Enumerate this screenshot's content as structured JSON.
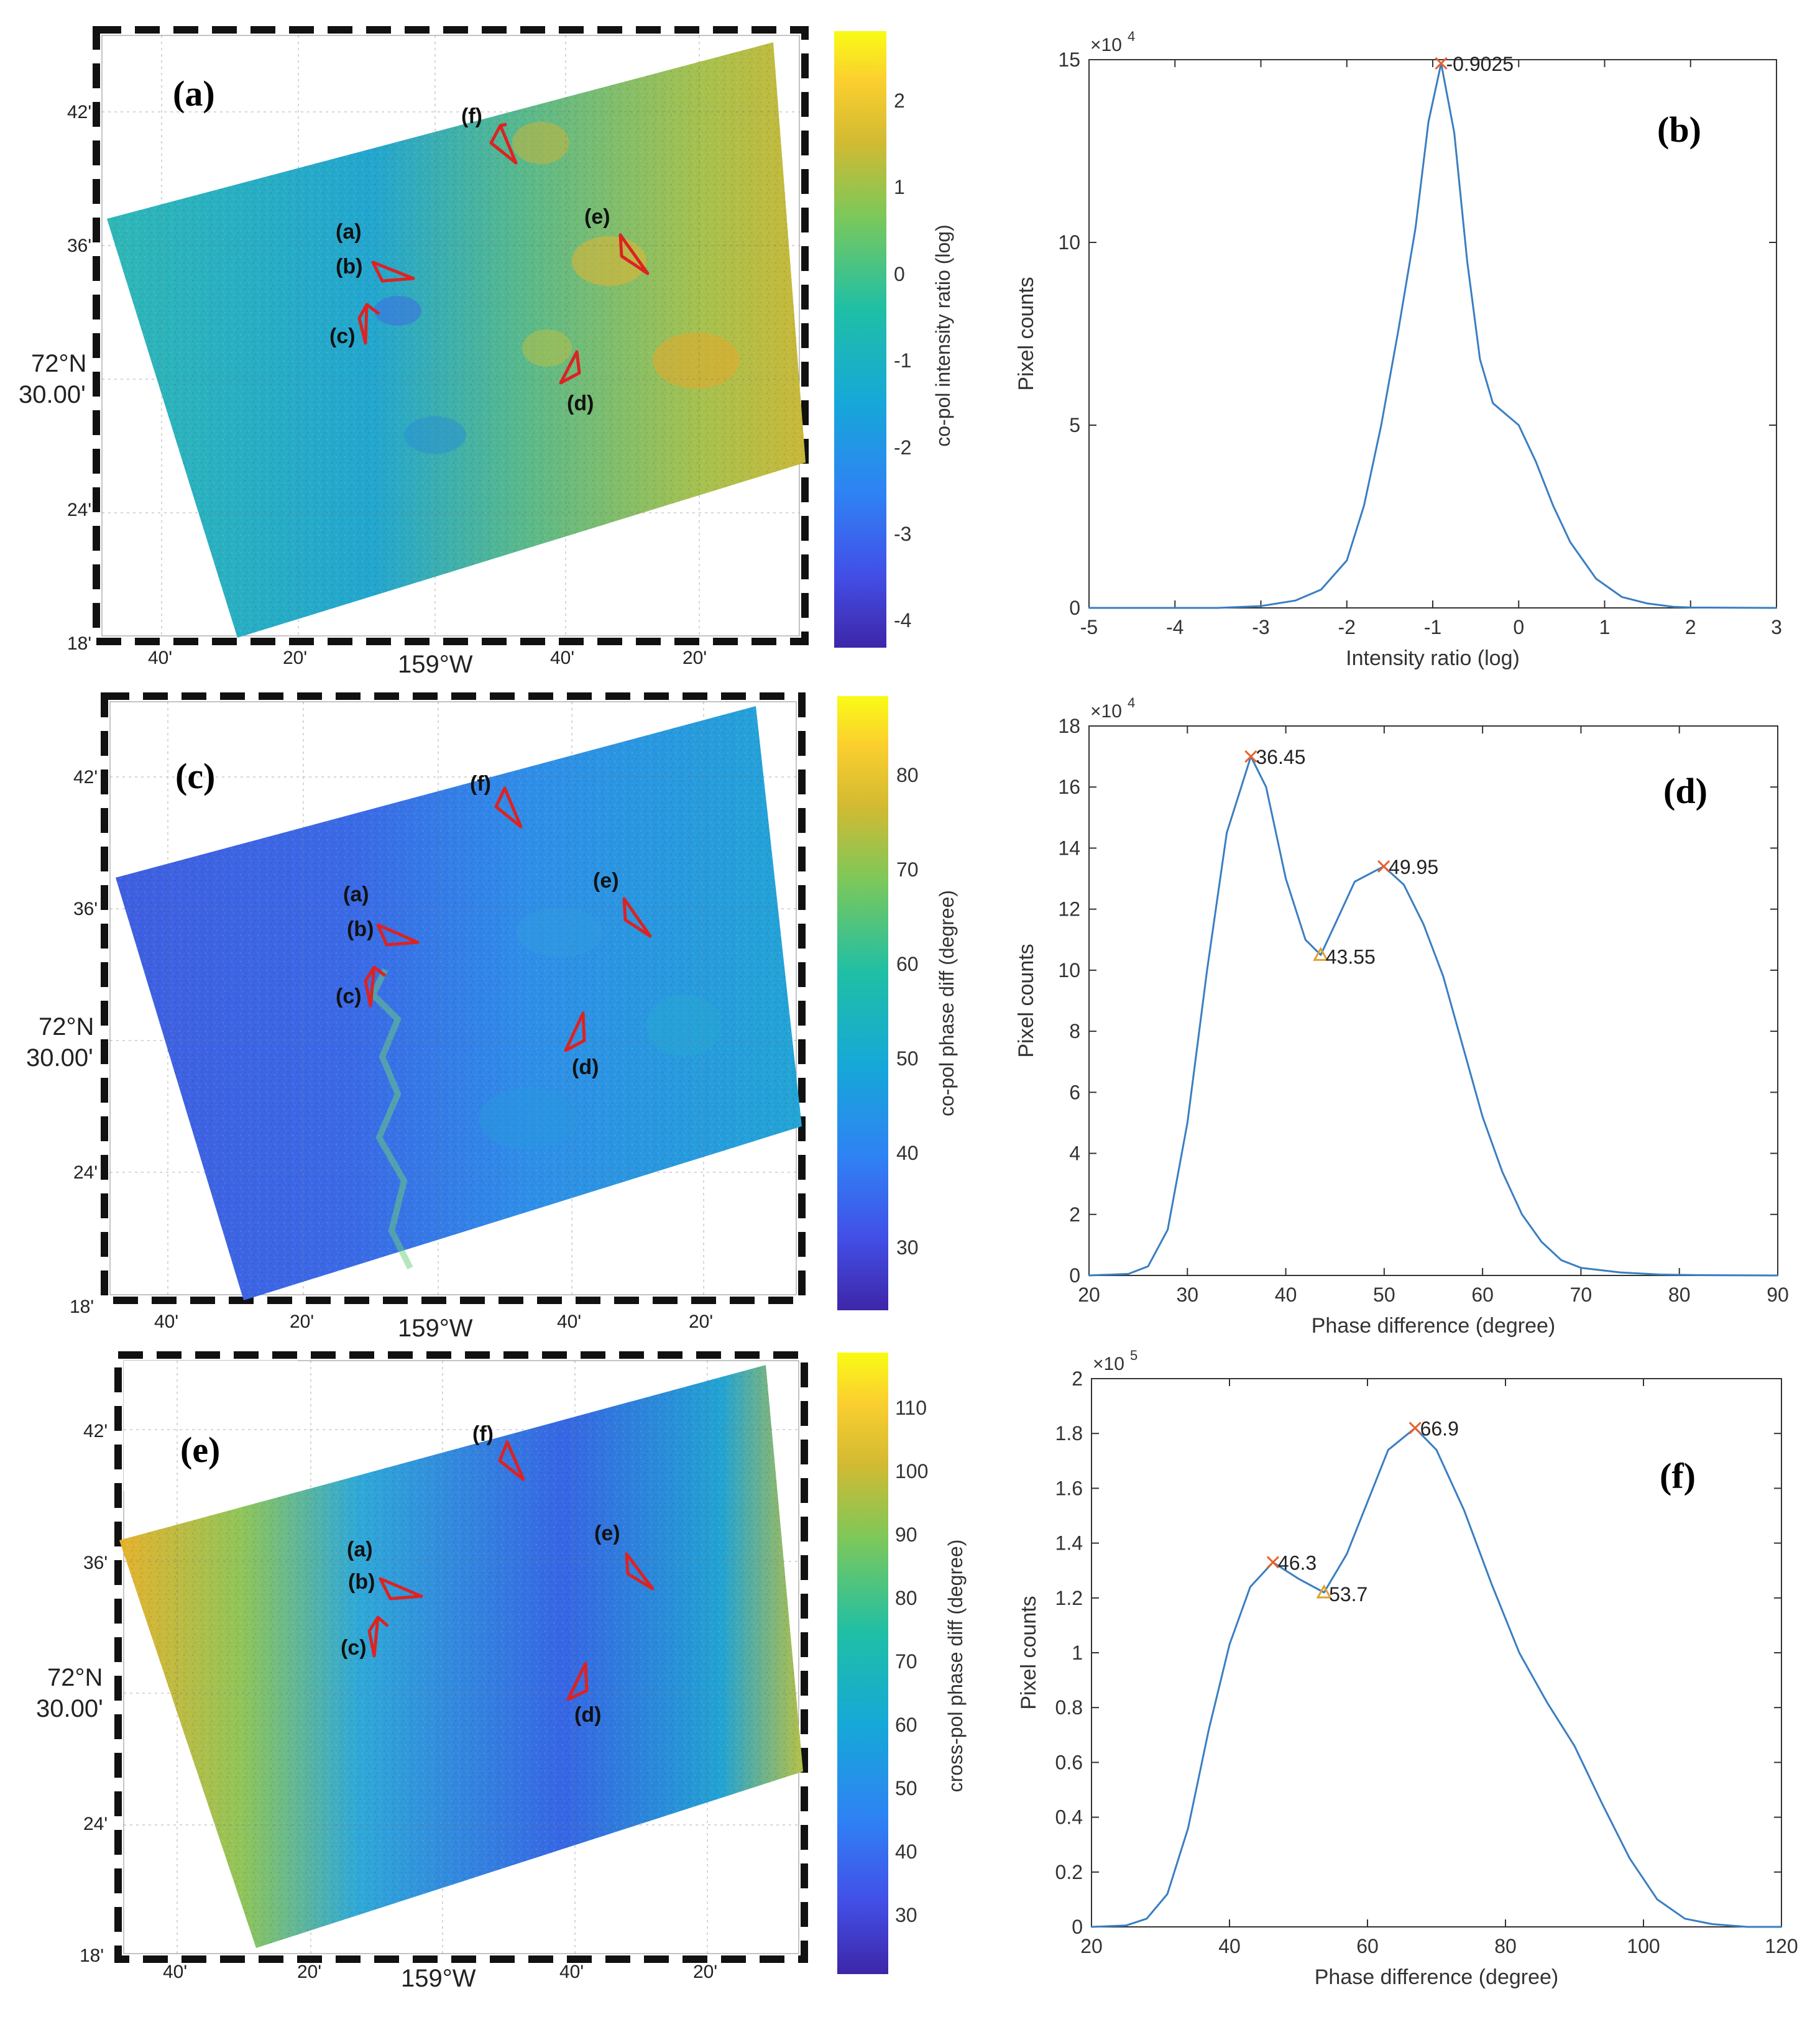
{
  "colors": {
    "curve": "#3a7ec2",
    "peak_marker": "#e8612c",
    "valley_marker": "#e0a030",
    "arrow": "#dd2222",
    "axis": "#333333"
  },
  "chart_data": [
    {
      "panel": "a",
      "type": "heatmap",
      "panel_label": "(a)",
      "colorbar_label": "co-pol intensity ratio (log)",
      "colorbar_range": [
        -4.3,
        2.8
      ],
      "colorbar_ticks": [
        "2",
        "1",
        "0",
        "-1",
        "-2",
        "-3",
        "-4"
      ],
      "lat_labels": [
        "42'",
        "36'",
        "72°N",
        "30.00'",
        "24'",
        "18'"
      ],
      "lon_labels": [
        "40'",
        "20'",
        "159°W",
        "40'",
        "20'"
      ],
      "annotations": [
        "(a)",
        "(b)",
        "(c)",
        "(d)",
        "(e)",
        "(f)"
      ]
    },
    {
      "panel": "b",
      "type": "line",
      "panel_label": "(b)",
      "xlabel": "Intensity ratio (log)",
      "ylabel": "Pixel counts",
      "exponent": "×10",
      "exponent_power": "4",
      "xlim": [
        -5,
        3
      ],
      "ylim": [
        0,
        15
      ],
      "xticks": [
        "-5",
        "-4",
        "-3",
        "-2",
        "-1",
        "0",
        "1",
        "2",
        "3"
      ],
      "yticks": [
        "0",
        "5",
        "10",
        "15"
      ],
      "x": [
        -5,
        -3.5,
        -3,
        -2.6,
        -2.3,
        -2.0,
        -1.8,
        -1.6,
        -1.4,
        -1.2,
        -1.05,
        -0.9025,
        -0.75,
        -0.6,
        -0.45,
        -0.3,
        -0.15,
        0.0,
        0.2,
        0.4,
        0.6,
        0.9,
        1.2,
        1.5,
        1.8,
        2.0,
        3.0
      ],
      "y": [
        0,
        0,
        0.05,
        0.2,
        0.5,
        1.3,
        2.8,
        5.0,
        7.6,
        10.4,
        13.3,
        14.9,
        13.0,
        9.5,
        6.8,
        5.6,
        5.3,
        5.0,
        4.0,
        2.8,
        1.8,
        0.8,
        0.3,
        0.12,
        0.03,
        0.01,
        0
      ],
      "peaks": [
        {
          "x": -0.9025,
          "y": 14.9,
          "label": "-0.9025"
        }
      ],
      "valleys": []
    },
    {
      "panel": "c",
      "type": "heatmap",
      "panel_label": "(c)",
      "colorbar_label": "co-pol phase diff (degree)",
      "colorbar_range": [
        23,
        88
      ],
      "colorbar_ticks": [
        "80",
        "70",
        "60",
        "50",
        "40",
        "30"
      ],
      "lat_labels": [
        "42'",
        "36'",
        "72°N",
        "30.00'",
        "24'",
        "18'"
      ],
      "lon_labels": [
        "40'",
        "20'",
        "159°W",
        "40'",
        "20'"
      ],
      "annotations": [
        "(a)",
        "(b)",
        "(c)",
        "(d)",
        "(e)",
        "(f)"
      ]
    },
    {
      "panel": "d",
      "type": "line",
      "panel_label": "(d)",
      "xlabel": "Phase difference (degree)",
      "ylabel": "Pixel counts",
      "exponent": "×10",
      "exponent_power": "4",
      "xlim": [
        20,
        90
      ],
      "ylim": [
        0,
        18
      ],
      "xticks": [
        "20",
        "30",
        "40",
        "50",
        "60",
        "70",
        "80",
        "90"
      ],
      "yticks": [
        "0",
        "2",
        "4",
        "6",
        "8",
        "10",
        "12",
        "14",
        "16",
        "18"
      ],
      "x": [
        20,
        24,
        26,
        28,
        30,
        32,
        34,
        36.45,
        38,
        40,
        42,
        43.55,
        45,
        47,
        49.95,
        52,
        54,
        56,
        58,
        60,
        62,
        64,
        66,
        68,
        70,
        74,
        78,
        82,
        90
      ],
      "y": [
        0,
        0.05,
        0.3,
        1.5,
        5.0,
        10.0,
        14.5,
        17.0,
        16.0,
        13.0,
        11.0,
        10.5,
        11.5,
        12.9,
        13.4,
        12.8,
        11.5,
        9.8,
        7.5,
        5.2,
        3.4,
        2.0,
        1.1,
        0.5,
        0.25,
        0.1,
        0.03,
        0.01,
        0
      ],
      "peaks": [
        {
          "x": 36.45,
          "y": 17.0,
          "label": "36.45"
        },
        {
          "x": 49.95,
          "y": 13.4,
          "label": "49.95"
        }
      ],
      "valleys": [
        {
          "x": 43.55,
          "y": 10.5,
          "label": "43.55"
        }
      ]
    },
    {
      "panel": "e",
      "type": "heatmap",
      "panel_label": "(e)",
      "colorbar_label": "cross-pol phase diff (degree)",
      "colorbar_range": [
        23,
        118
      ],
      "colorbar_ticks": [
        "110",
        "100",
        "90",
        "80",
        "70",
        "60",
        "50",
        "40",
        "30"
      ],
      "lat_labels": [
        "42'",
        "36'",
        "72°N",
        "30.00'",
        "24'",
        "18'"
      ],
      "lon_labels": [
        "40'",
        "20'",
        "159°W",
        "40'",
        "20'"
      ],
      "annotations": [
        "(a)",
        "(b)",
        "(c)",
        "(d)",
        "(e)",
        "(f)"
      ]
    },
    {
      "panel": "f",
      "type": "line",
      "panel_label": "(f)",
      "xlabel": "Phase difference (degree)",
      "ylabel": "Pixel counts",
      "exponent": "×10",
      "exponent_power": "5",
      "xlim": [
        20,
        120
      ],
      "ylim": [
        0,
        2
      ],
      "xticks": [
        "20",
        "40",
        "60",
        "80",
        "100",
        "120"
      ],
      "yticks": [
        "0",
        "0.2",
        "0.4",
        "0.6",
        "0.8",
        "1",
        "1.2",
        "1.4",
        "1.6",
        "1.8",
        "2"
      ],
      "x": [
        20,
        25,
        28,
        31,
        34,
        37,
        40,
        43,
        46.3,
        50,
        53.7,
        57,
        60,
        63,
        66.9,
        70,
        74,
        78,
        82,
        86,
        90,
        94,
        98,
        102,
        106,
        110,
        115,
        120
      ],
      "y": [
        0,
        0.005,
        0.03,
        0.12,
        0.36,
        0.72,
        1.03,
        1.24,
        1.33,
        1.27,
        1.22,
        1.36,
        1.55,
        1.74,
        1.82,
        1.74,
        1.52,
        1.25,
        1.0,
        0.82,
        0.66,
        0.45,
        0.25,
        0.1,
        0.03,
        0.01,
        0.0,
        0
      ],
      "peaks": [
        {
          "x": 46.3,
          "y": 1.33,
          "label": "46.3"
        },
        {
          "x": 66.9,
          "y": 1.82,
          "label": "66.9"
        }
      ],
      "valleys": [
        {
          "x": 53.7,
          "y": 1.22,
          "label": "53.7"
        }
      ]
    }
  ]
}
